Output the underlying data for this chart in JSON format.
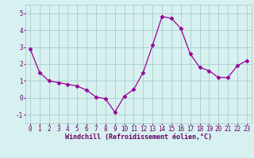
{
  "x": [
    0,
    1,
    2,
    3,
    4,
    5,
    6,
    7,
    8,
    9,
    10,
    11,
    12,
    13,
    14,
    15,
    16,
    17,
    18,
    19,
    20,
    21,
    22,
    23
  ],
  "y": [
    2.9,
    1.5,
    1.0,
    0.9,
    0.8,
    0.7,
    0.45,
    0.05,
    -0.05,
    -0.85,
    0.1,
    0.5,
    1.5,
    3.1,
    4.8,
    4.7,
    4.1,
    2.6,
    1.8,
    1.6,
    1.2,
    1.2,
    1.9,
    2.2
  ],
  "line_color": "#990099",
  "marker": "D",
  "marker_size": 2.5,
  "bg_color": "#d7f0f0",
  "grid_color": "#aacccc",
  "xlabel": "Windchill (Refroidissement éolien,°C)",
  "xlabel_color": "#660066",
  "xlabel_fontsize": 6.0,
  "tick_color": "#660066",
  "tick_fontsize": 5.5,
  "ylim": [
    -1.5,
    5.5
  ],
  "yticks": [
    -1,
    0,
    1,
    2,
    3,
    4,
    5
  ],
  "xlim": [
    -0.5,
    23.5
  ]
}
